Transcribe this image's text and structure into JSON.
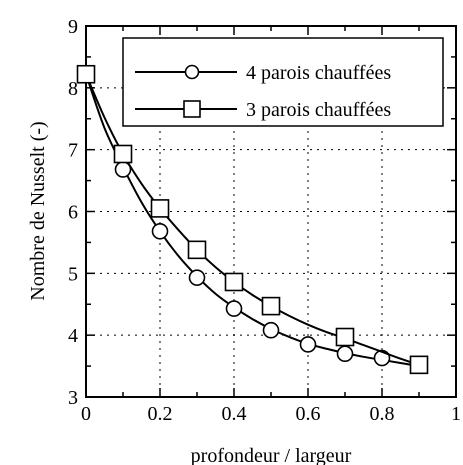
{
  "chart_data": {
    "type": "line",
    "xlabel": "profondeur / largeur",
    "ylabel": "Nombre de Nusselt (-)",
    "xlim": [
      0,
      1
    ],
    "ylim": [
      3,
      9
    ],
    "x_ticks": [
      0,
      0.2,
      0.4,
      0.6,
      0.8,
      1
    ],
    "x_tick_labels": [
      "0",
      "0.2",
      "0.4",
      "0.6",
      "0.8",
      "1"
    ],
    "y_ticks": [
      3,
      4,
      5,
      6,
      7,
      8,
      9
    ],
    "y_tick_labels": [
      "3",
      "4",
      "5",
      "6",
      "7",
      "8",
      "9"
    ],
    "grid": true,
    "legend_position": "top-right",
    "series": [
      {
        "name": "4 parois chauffées",
        "marker": "circle",
        "x": [
          0,
          0.1,
          0.2,
          0.3,
          0.4,
          0.5,
          0.6,
          0.7,
          0.8
        ],
        "y": [
          8.22,
          6.68,
          5.68,
          4.93,
          4.43,
          4.08,
          3.85,
          3.7,
          3.63
        ],
        "curve_x": [
          0,
          0.05,
          0.1,
          0.15,
          0.2,
          0.25,
          0.3,
          0.35,
          0.4,
          0.45,
          0.5,
          0.55,
          0.6,
          0.65,
          0.7,
          0.75,
          0.8,
          0.85,
          0.9
        ],
        "curve_y": [
          8.22,
          7.35,
          6.72,
          6.15,
          5.68,
          5.28,
          4.95,
          4.67,
          4.45,
          4.26,
          4.1,
          3.97,
          3.86,
          3.78,
          3.71,
          3.65,
          3.6,
          3.55,
          3.5
        ]
      },
      {
        "name": "3 parois chauffées",
        "marker": "square",
        "x": [
          0,
          0.1,
          0.2,
          0.3,
          0.4,
          0.5,
          0.7,
          0.9
        ],
        "y": [
          8.22,
          6.93,
          6.05,
          5.38,
          4.86,
          4.47,
          3.97,
          3.52
        ],
        "curve_x": [
          0,
          0.05,
          0.1,
          0.15,
          0.2,
          0.25,
          0.3,
          0.35,
          0.4,
          0.45,
          0.5,
          0.55,
          0.6,
          0.65,
          0.7,
          0.75,
          0.8,
          0.85,
          0.9
        ],
        "curve_y": [
          8.22,
          7.52,
          6.93,
          6.45,
          6.05,
          5.7,
          5.38,
          5.1,
          4.86,
          4.65,
          4.47,
          4.31,
          4.17,
          4.05,
          3.95,
          3.84,
          3.73,
          3.62,
          3.52
        ]
      }
    ]
  }
}
